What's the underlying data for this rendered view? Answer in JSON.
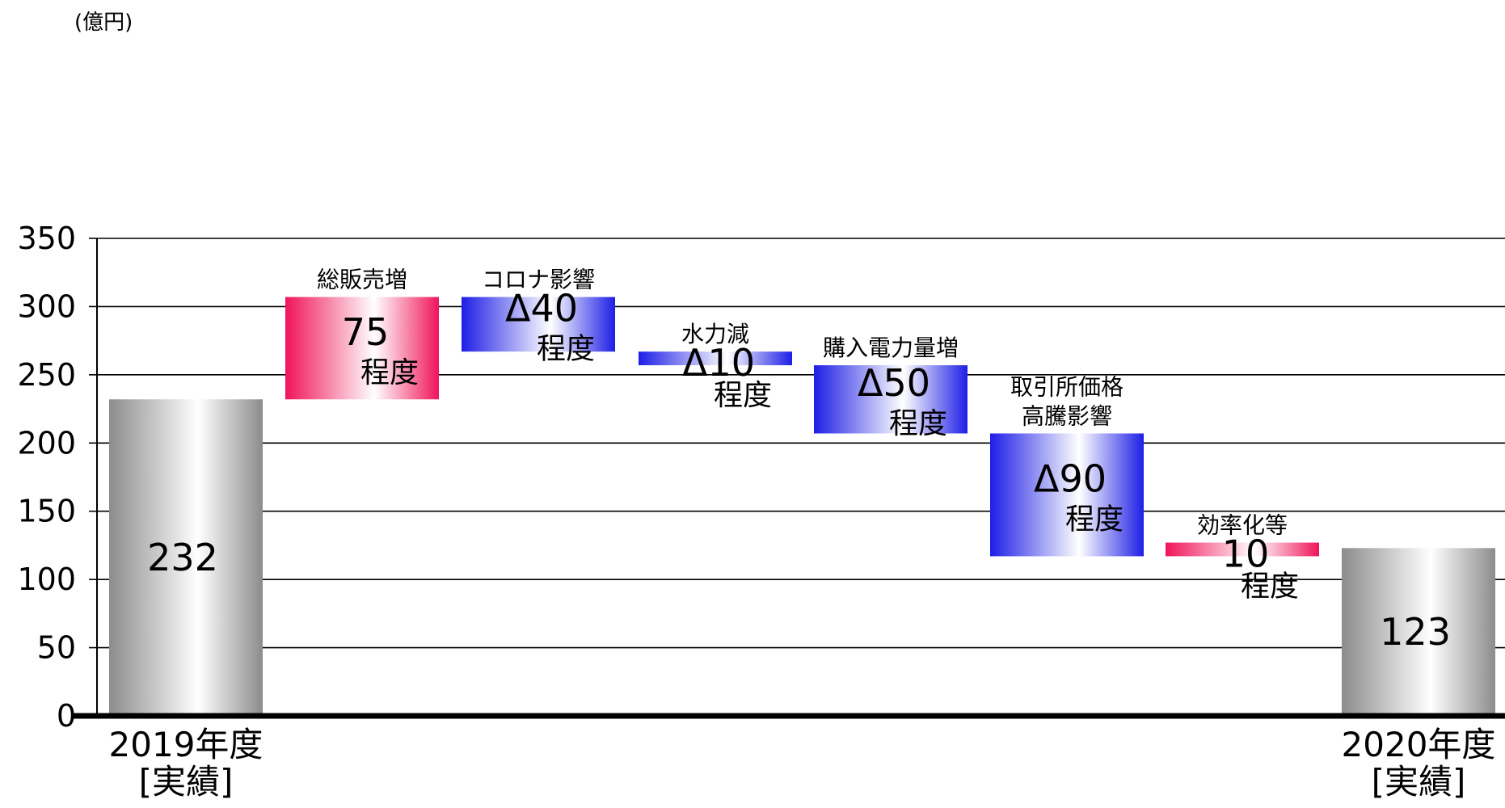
{
  "chart_data": {
    "type": "bar",
    "subtype": "waterfall",
    "ylabel": "(億円)",
    "ylim": [
      0,
      350
    ],
    "yticks": [
      "0",
      "50",
      "100",
      "150",
      "200",
      "250",
      "300",
      "350"
    ],
    "grid": true,
    "legend": "none",
    "colors": {
      "total": "#8c8c8c",
      "increase": "#f0145a",
      "decrease": "#1e1ee6"
    },
    "steps": [
      {
        "kind": "total",
        "label": "2019年度\n[実績]",
        "value": 232,
        "value_text": "232",
        "suffix": ""
      },
      {
        "kind": "increase",
        "label": "総販売増",
        "value": 75,
        "value_text": "75",
        "suffix": "程度"
      },
      {
        "kind": "decrease",
        "label": "コロナ影響",
        "value": -40,
        "value_text": "Δ40",
        "suffix": "程度"
      },
      {
        "kind": "decrease",
        "label": "水力減",
        "value": -10,
        "value_text": "Δ10",
        "suffix": "程度"
      },
      {
        "kind": "decrease",
        "label": "購入電力量増",
        "value": -50,
        "value_text": "Δ50",
        "suffix": "程度"
      },
      {
        "kind": "decrease",
        "label": "取引所価格\n高騰影響",
        "value": -90,
        "value_text": "Δ90",
        "suffix": "程度"
      },
      {
        "kind": "increase",
        "label": "効率化等",
        "value": 10,
        "value_text": "10",
        "suffix": "程度"
      },
      {
        "kind": "total",
        "label": "2020年度\n[実績]",
        "value": 123,
        "value_text": "123",
        "suffix": ""
      }
    ]
  }
}
